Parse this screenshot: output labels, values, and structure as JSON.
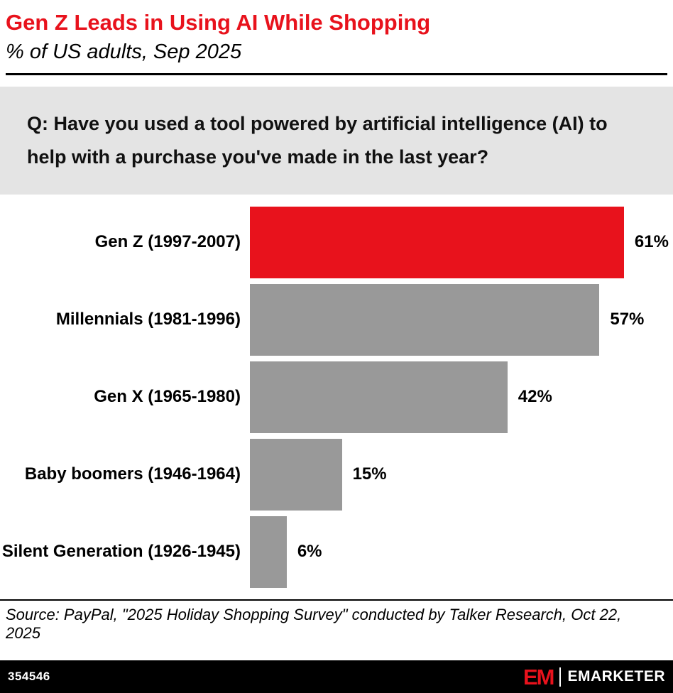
{
  "header": {
    "title": "Gen Z Leads in Using AI While Shopping",
    "subtitle": "% of US adults, Sep 2025"
  },
  "question": "Q: Have you used a tool powered by artificial intelligence (AI) to help with a purchase you've made in the last year?",
  "chart_data": {
    "type": "bar",
    "orientation": "horizontal",
    "title": "Gen Z Leads in Using AI While Shopping",
    "subtitle": "% of US adults, Sep 2025",
    "categories": [
      "Gen Z (1997-2007)",
      "Millennials (1981-1996)",
      "Gen X (1965-1980)",
      "Baby boomers (1946-1964)",
      "Silent Generation (1926-1945)"
    ],
    "values": [
      61,
      57,
      42,
      15,
      6
    ],
    "value_labels": [
      "61%",
      "57%",
      "42%",
      "15%",
      "6%"
    ],
    "bar_colors": [
      "#e8121c",
      "#999999",
      "#999999",
      "#999999",
      "#999999"
    ],
    "xlim": [
      0,
      69
    ],
    "grid": false,
    "legend": false
  },
  "source": "Source: PayPal, \"2025 Holiday Shopping Survey\" conducted by Talker Research, Oct 22, 2025",
  "footer": {
    "chart_id": "354546",
    "logo_mark": "EM",
    "brand": "EMARKETER"
  },
  "colors": {
    "accent_red": "#e8121c",
    "bar_gray": "#999999",
    "question_bg": "#e4e4e4",
    "footer_bg": "#000000"
  }
}
